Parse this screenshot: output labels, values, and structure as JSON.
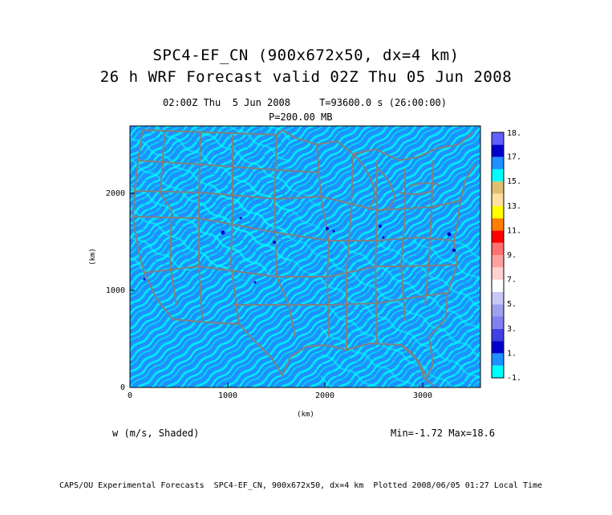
{
  "title_line1": "SPC4-EF_CN (900x672x50, dx=4 km)",
  "title_line2": "26 h WRF Forecast valid 02Z Thu 05 Jun 2008",
  "time_info": "02:00Z Thu  5 Jun 2008     T=93600.0 s (26:00:00)",
  "level": "P=200.00 MB",
  "x_axis": {
    "label": "(km)",
    "ticks": [
      "0",
      "1000",
      "2000",
      "3000"
    ]
  },
  "y_axis": {
    "label": "(km)",
    "ticks": [
      "0",
      "1000",
      "2000"
    ]
  },
  "colorbar": {
    "colors": [
      "#00ffff",
      "#1e90ff",
      "#0000cd",
      "#4040e6",
      "#8080f0",
      "#a0a0f0",
      "#c8c8f8",
      "#ffffff",
      "#ffd0d0",
      "#ffa0a0",
      "#ff7070",
      "#ff0000",
      "#ff8000",
      "#ffff00",
      "#ffe0a0",
      "#e0c070",
      "#00ffff",
      "#1e90ff",
      "#0000cd",
      "#6060ff"
    ],
    "labels": [
      "-1.",
      "1.",
      "3.",
      "5.",
      "7.",
      "9.",
      "11.",
      "13.",
      "15.",
      "17.",
      "18."
    ]
  },
  "variable_label": "w (m/s, Shaded)",
  "minmax": "Min=-1.72 Max=18.6",
  "footer": "CAPS/OU Experimental Forecasts  SPC4-EF_CN, 900x672x50, dx=4 km  Plotted 2008/06/05 01:27 Local Time"
}
